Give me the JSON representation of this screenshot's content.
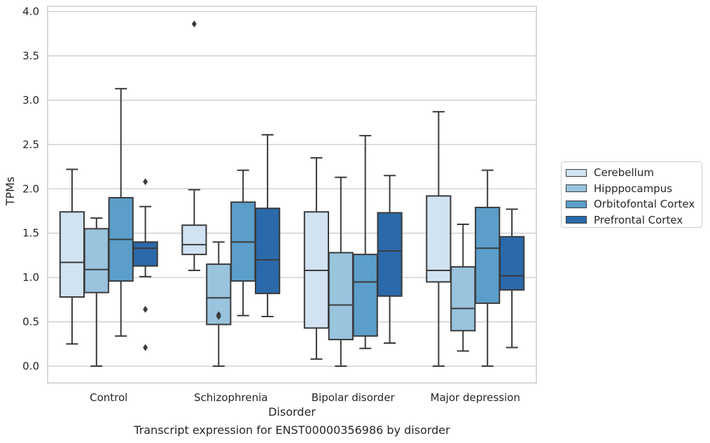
{
  "chart_data": {
    "type": "box",
    "xlabel": "Disorder",
    "ylabel": "TPMs",
    "caption": "Transcript expression for ENST00000356986 by disorder",
    "ylim": [
      -0.18,
      4.05
    ],
    "yticks": [
      "0.0",
      "0.5",
      "1.0",
      "1.5",
      "2.0",
      "2.5",
      "3.0",
      "3.5",
      "4.0"
    ],
    "grid": true,
    "legend_position": "right",
    "categories": [
      "Control",
      "Schizophrenia",
      "Bipolar disorder",
      "Major depression"
    ],
    "series": [
      {
        "name": "Cerebellum",
        "color": "#d1e2f2",
        "boxes": [
          {
            "whislo": 0.25,
            "q1": 0.78,
            "med": 1.17,
            "q3": 1.74,
            "whishi": 2.22,
            "fliers": []
          },
          {
            "whislo": 1.08,
            "q1": 1.26,
            "med": 1.37,
            "q3": 1.59,
            "whishi": 1.99,
            "fliers": [
              3.86
            ]
          },
          {
            "whislo": 0.08,
            "q1": 0.43,
            "med": 1.08,
            "q3": 1.74,
            "whishi": 2.35,
            "fliers": []
          },
          {
            "whislo": 0.0,
            "q1": 0.95,
            "med": 1.08,
            "q3": 1.92,
            "whishi": 2.87,
            "fliers": []
          }
        ]
      },
      {
        "name": "Hipppocampus",
        "color": "#9ac3de",
        "boxes": [
          {
            "whislo": 0.0,
            "q1": 0.83,
            "med": 1.09,
            "q3": 1.55,
            "whishi": 1.67,
            "fliers": []
          },
          {
            "whislo": 0.0,
            "q1": 0.47,
            "med": 0.77,
            "q3": 1.15,
            "whishi": 1.4,
            "fliers": [
              0.58,
              0.56
            ]
          },
          {
            "whislo": 0.0,
            "q1": 0.3,
            "med": 0.69,
            "q3": 1.28,
            "whishi": 2.13,
            "fliers": []
          },
          {
            "whislo": 0.17,
            "q1": 0.4,
            "med": 0.65,
            "q3": 1.12,
            "whishi": 1.6,
            "fliers": []
          }
        ]
      },
      {
        "name": "Orbitofontal Cortex",
        "color": "#5a9ec9",
        "boxes": [
          {
            "whislo": 0.34,
            "q1": 0.96,
            "med": 1.43,
            "q3": 1.9,
            "whishi": 3.13,
            "fliers": []
          },
          {
            "whislo": 0.57,
            "q1": 0.96,
            "med": 1.4,
            "q3": 1.85,
            "whishi": 2.21,
            "fliers": []
          },
          {
            "whislo": 0.2,
            "q1": 0.34,
            "med": 0.95,
            "q3": 1.26,
            "whishi": 2.6,
            "fliers": []
          },
          {
            "whislo": 0.0,
            "q1": 0.71,
            "med": 1.33,
            "q3": 1.79,
            "whishi": 2.21,
            "fliers": []
          }
        ]
      },
      {
        "name": "Prefrontal Cortex",
        "color": "#2a6aaa",
        "boxes": [
          {
            "whislo": 1.01,
            "q1": 1.13,
            "med": 1.33,
            "q3": 1.4,
            "whishi": 1.8,
            "fliers": [
              2.08,
              0.64,
              0.21
            ]
          },
          {
            "whislo": 0.56,
            "q1": 0.82,
            "med": 1.2,
            "q3": 1.78,
            "whishi": 2.61,
            "fliers": []
          },
          {
            "whislo": 0.26,
            "q1": 0.79,
            "med": 1.3,
            "q3": 1.73,
            "whishi": 2.15,
            "fliers": []
          },
          {
            "whislo": 0.21,
            "q1": 0.86,
            "med": 1.02,
            "q3": 1.46,
            "whishi": 1.77,
            "fliers": []
          }
        ]
      }
    ]
  }
}
